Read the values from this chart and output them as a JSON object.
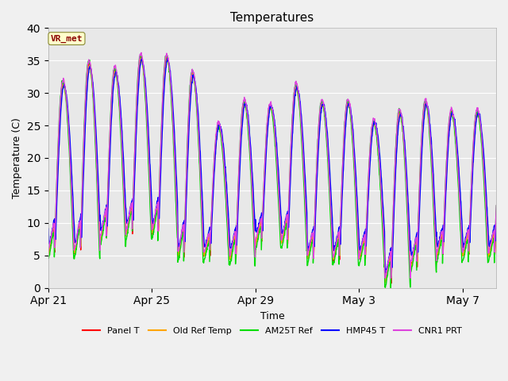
{
  "title": "Temperatures",
  "xlabel": "Time",
  "ylabel": "Temperature (C)",
  "ylim": [
    0,
    40
  ],
  "background_color": "#f0f0f0",
  "plot_bg_color": "#e8e8e8",
  "annotation_text": "VR_met",
  "annotation_bg": "#ffffcc",
  "annotation_fg": "#8b0000",
  "x_ticks_labels": [
    "Apr 21",
    "Apr 25",
    "Apr 29",
    "May 3",
    "May 7"
  ],
  "x_ticks_pos": [
    0,
    4,
    8,
    12,
    16
  ],
  "y_ticks": [
    0,
    5,
    10,
    15,
    20,
    25,
    30,
    35,
    40
  ],
  "series": [
    {
      "label": "Panel T",
      "color": "#ff0000",
      "lw": 1.0
    },
    {
      "label": "Old Ref Temp",
      "color": "#ffa500",
      "lw": 1.0
    },
    {
      "label": "AM25T Ref",
      "color": "#00dd00",
      "lw": 1.0
    },
    {
      "label": "HMP45 T",
      "color": "#0000ff",
      "lw": 1.0
    },
    {
      "label": "CNR1 PRT",
      "color": "#dd44dd",
      "lw": 1.0
    }
  ],
  "n_days": 17.5,
  "dt": 0.01,
  "seed": 42,
  "base_temp": 5.5,
  "peak_amps": [
    26,
    29,
    26,
    27,
    27,
    28,
    20,
    24,
    21,
    24,
    24,
    24,
    21,
    26,
    25,
    22,
    22
  ],
  "trough_mins": [
    5.5,
    5.5,
    7.5,
    8.5,
    8.5,
    5.0,
    5.0,
    4.5,
    7.0,
    7.0,
    4.5,
    4.5,
    4.5,
    1.0,
    3.5,
    5.0,
    5.0
  ]
}
